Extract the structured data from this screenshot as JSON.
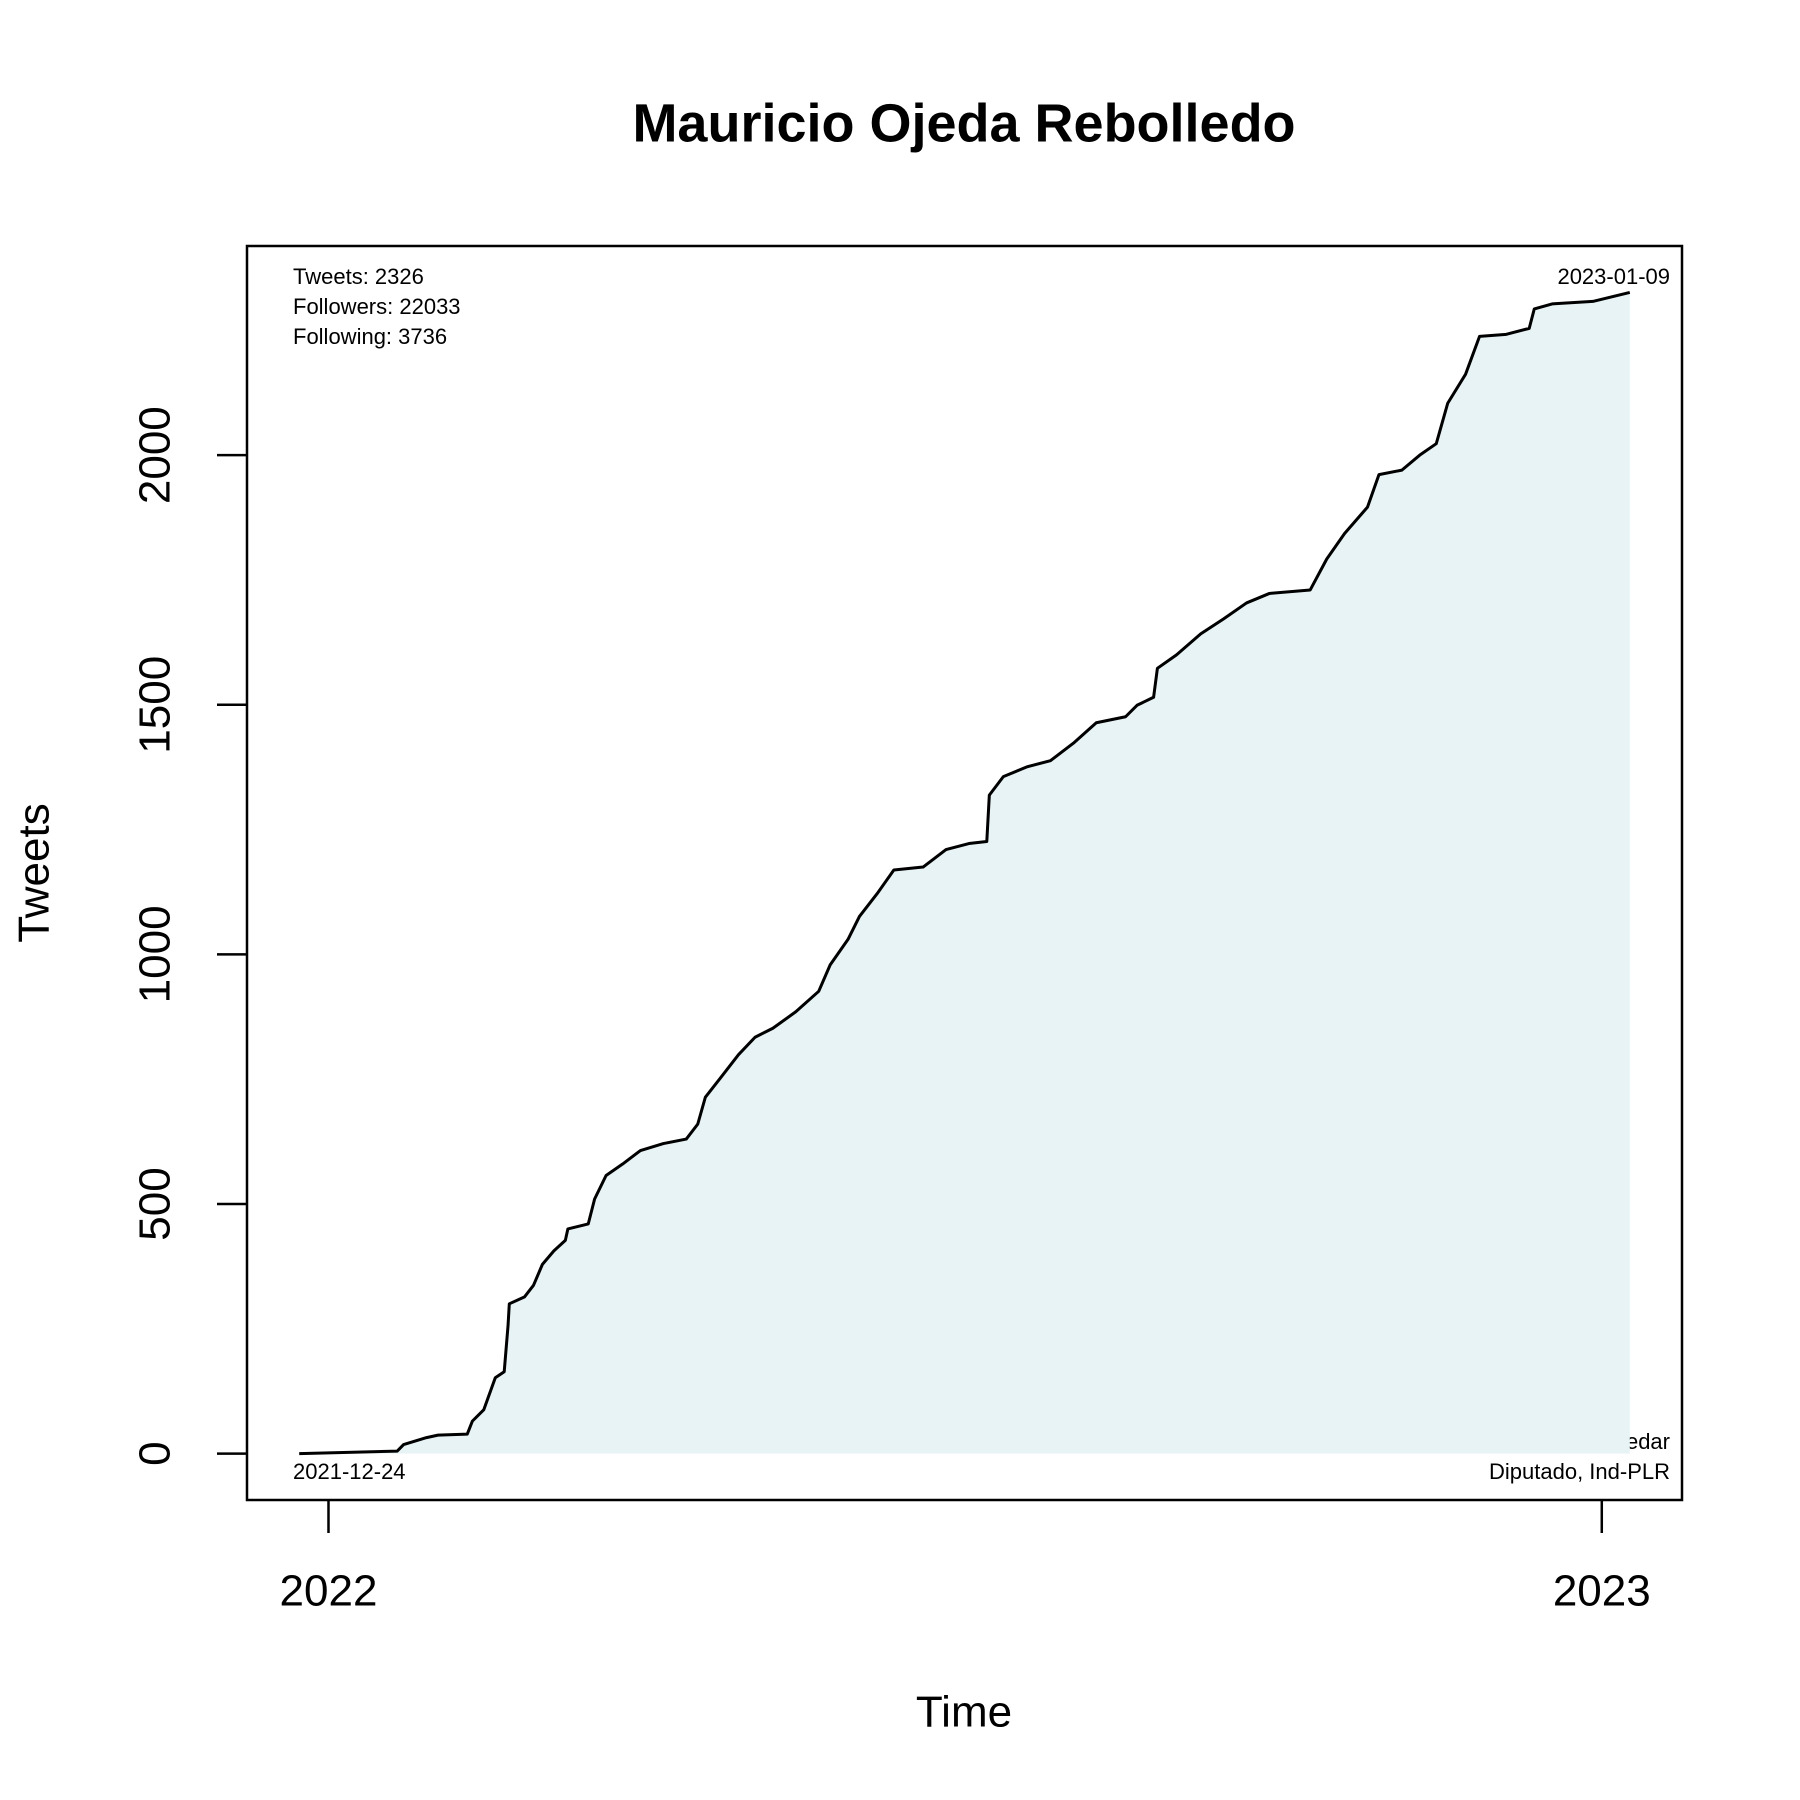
{
  "chart_data": {
    "type": "line",
    "title": "Mauricio Ojeda Rebolledo",
    "x_label": "Time",
    "y_label": "Tweets",
    "annotations": {
      "top_left": [
        "Tweets: 2326",
        "Followers: 22033",
        "Following: 3736"
      ],
      "top_right": "2023-01-09",
      "bottom_left": "2021-12-24",
      "bottom_right": [
        "@mauricio_ojedar",
        "Diputado, Ind-PLR"
      ]
    },
    "x": [
      2021.977,
      2022.054,
      2022.059,
      2022.077,
      2022.086,
      2022.109,
      2022.113,
      2022.122,
      2022.131,
      2022.138,
      2022.141,
      2022.142,
      2022.154,
      2022.161,
      2022.168,
      2022.177,
      2022.186,
      2022.188,
      2022.204,
      2022.209,
      2022.218,
      2022.231,
      2022.245,
      2022.263,
      2022.281,
      2022.29,
      2022.296,
      2022.308,
      2022.322,
      2022.335,
      2022.349,
      2022.367,
      2022.385,
      2022.394,
      2022.408,
      2022.417,
      2022.431,
      2022.444,
      2022.467,
      2022.485,
      2022.503,
      2022.517,
      2022.519,
      2022.53,
      2022.549,
      2022.567,
      2022.585,
      2022.603,
      2022.626,
      2022.635,
      2022.648,
      2022.651,
      2022.666,
      2022.685,
      2022.703,
      2022.721,
      2022.739,
      2022.771,
      2022.784,
      2022.798,
      2022.816,
      2022.825,
      2022.843,
      2022.857,
      2022.87,
      2022.879,
      2022.893,
      2022.904,
      2022.925,
      2022.943,
      2022.947,
      2022.961,
      2022.993,
      2023.022
    ],
    "series": [
      {
        "name": "Tweets",
        "color": "#000000",
        "fill": "#e8f3f6",
        "values": [
          0,
          5,
          18,
          32,
          37,
          39,
          65,
          88,
          152,
          164,
          256,
          300,
          314,
          337,
          379,
          406,
          427,
          450,
          460,
          510,
          557,
          580,
          607,
          621,
          630,
          660,
          714,
          753,
          799,
          834,
          852,
          885,
          926,
          979,
          1030,
          1076,
          1122,
          1169,
          1175,
          1210,
          1222,
          1226,
          1319,
          1356,
          1376,
          1388,
          1423,
          1464,
          1476,
          1499,
          1515,
          1573,
          1600,
          1642,
          1672,
          1704,
          1723,
          1730,
          1792,
          1843,
          1896,
          1961,
          1970,
          2000,
          2023,
          2104,
          2162,
          2238,
          2242,
          2254,
          2293,
          2303,
          2308,
          2326
        ]
      }
    ],
    "xlim": [
      2021.936,
      2023.063
    ],
    "xticks": [
      2022,
      2023
    ],
    "ylim": [
      -93,
      2419
    ],
    "yticks": [
      0,
      500,
      1000,
      1500,
      2000
    ],
    "grid": false
  }
}
